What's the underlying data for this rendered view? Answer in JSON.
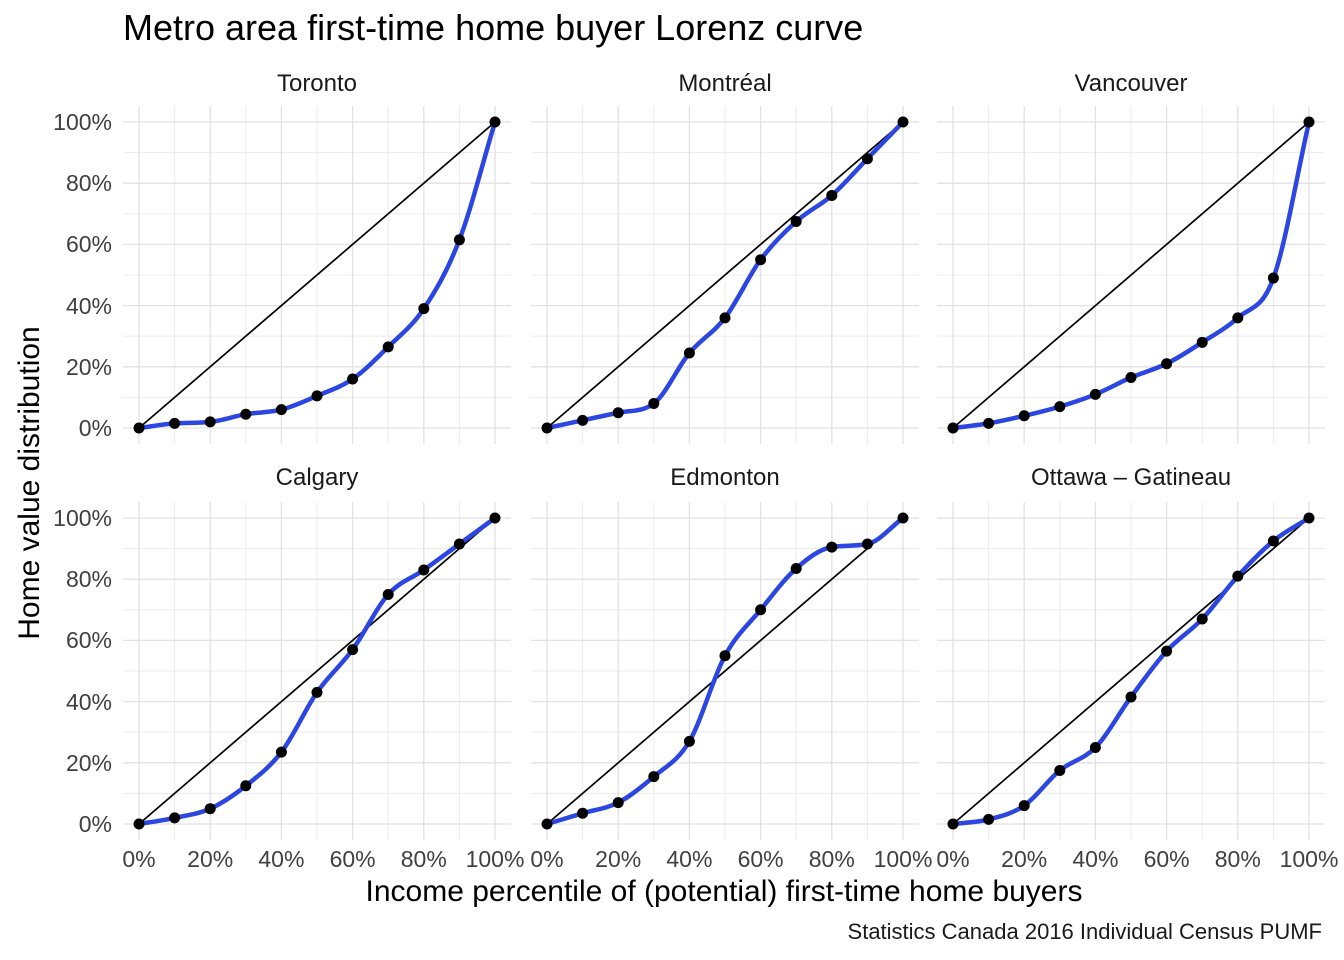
{
  "chart_data": {
    "type": "line",
    "title": "Metro area first-time home buyer Lorenz curve",
    "xlabel": "Income percentile of (potential) first-time home buyers",
    "ylabel": "Home value distribution",
    "caption": "Statistics Canada 2016 Individual Census PUMF",
    "facet_layout": "3x2",
    "legend": "none",
    "grid": true,
    "xlim": [
      0,
      100
    ],
    "ylim": [
      0,
      100
    ],
    "x": [
      0,
      10,
      20,
      30,
      40,
      50,
      60,
      70,
      80,
      90,
      100
    ],
    "x_tick_values": [
      0,
      20,
      40,
      60,
      80,
      100
    ],
    "y_tick_values": [
      0,
      20,
      40,
      60,
      80,
      100
    ],
    "x_tick_labels": [
      "0%",
      "20%",
      "40%",
      "60%",
      "80%",
      "100%"
    ],
    "y_tick_labels": [
      "0%",
      "20%",
      "40%",
      "60%",
      "80%",
      "100%"
    ],
    "equality_line": {
      "from": [
        0,
        0
      ],
      "to": [
        100,
        100
      ]
    },
    "facets": [
      {
        "name": "Toronto",
        "values": [
          0,
          1.5,
          2,
          4.5,
          6,
          10.5,
          16,
          26.5,
          39,
          61.5,
          100
        ]
      },
      {
        "name": "Montréal",
        "values": [
          0,
          2.5,
          5,
          8,
          24.5,
          36,
          55,
          67.5,
          76,
          88,
          100
        ]
      },
      {
        "name": "Vancouver",
        "values": [
          0,
          1.5,
          4,
          7,
          11,
          16.5,
          21,
          28,
          36,
          49,
          100
        ]
      },
      {
        "name": "Calgary",
        "values": [
          0,
          2,
          5,
          12.5,
          23.5,
          43,
          57,
          75,
          83,
          91.5,
          100
        ]
      },
      {
        "name": "Edmonton",
        "values": [
          0,
          3.5,
          7,
          15.5,
          27,
          55,
          70,
          83.5,
          90.5,
          91.5,
          100
        ]
      },
      {
        "name": "Ottawa – Gatineau",
        "values": [
          0,
          1.5,
          6,
          17.5,
          25,
          41.5,
          56.5,
          67,
          81,
          92.5,
          100
        ]
      }
    ],
    "colors": {
      "curve": "#2B46E1",
      "point": "#000000",
      "equality_line": "#000000",
      "grid_major": "#E2E2E2",
      "grid_minor": "#EDEDED",
      "tick_text": "#404040",
      "strip_text": "#1A1A1A",
      "title_text": "#000000",
      "background": "#FFFFFF"
    }
  }
}
